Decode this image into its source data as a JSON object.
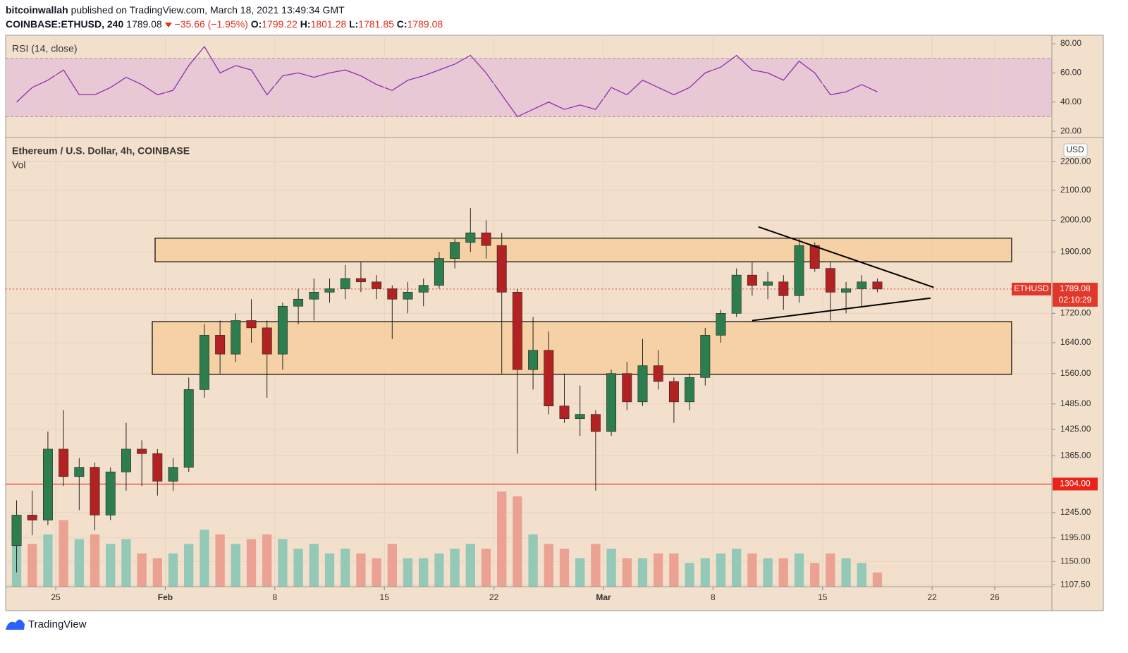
{
  "header": {
    "author": "bitcoinwallah",
    "published": "published on TradingView.com, March 18, 2021 13:49:34 GMT",
    "symbol": "COINBASE:ETHUSD, 240",
    "price": "1789.08",
    "change": "−35.66 (−1.95%)",
    "ohlc": [
      {
        "label": "O:",
        "value": "1799.22"
      },
      {
        "label": "H:",
        "value": "1801.28"
      },
      {
        "label": "L:",
        "value": "1781.85"
      },
      {
        "label": "C:",
        "value": "1789.08"
      }
    ]
  },
  "footer": {
    "brand": "TradingView"
  },
  "chart_data": [
    {
      "type": "candlestick",
      "title": "Ethereum / U.S. Dollar, 4h, COINBASE",
      "subtitle": "Vol",
      "unit": "USD",
      "log_scale": true,
      "up_color": "#2e7d4f",
      "down_color": "#b22222",
      "volume_up_color": "#93c9b6",
      "volume_down_color": "#eba293",
      "background": "#f3e0cc",
      "x": [
        22.5,
        23.5,
        24.5,
        25.5,
        26.5,
        27.5,
        28.5,
        29.5,
        30.5,
        31.5,
        32.5,
        33.5,
        34.5,
        35.5,
        36.5,
        37.5,
        38.5,
        39.5,
        40.5,
        41.5,
        42.5,
        43.5,
        44.5,
        45.5,
        46.5,
        47.5,
        48.5,
        49.5,
        50.5,
        51.5,
        52.5,
        53.5,
        54.5,
        55.5,
        56.5,
        57.5,
        58.5,
        59.5,
        60.5,
        61.5,
        62.5,
        63.5,
        64.5,
        65.5,
        66.5,
        67.5,
        68.5,
        69.5,
        70.5,
        71.5,
        72.5,
        73.5,
        74.5,
        75.5,
        76.5,
        77.5
      ],
      "open": [
        1180,
        1240,
        1230,
        1380,
        1320,
        1340,
        1240,
        1330,
        1380,
        1370,
        1310,
        1340,
        1520,
        1660,
        1610,
        1700,
        1680,
        1610,
        1740,
        1760,
        1780,
        1790,
        1820,
        1810,
        1790,
        1760,
        1780,
        1800,
        1880,
        1930,
        1960,
        1920,
        1780,
        1570,
        1620,
        1480,
        1450,
        1460,
        1420,
        1560,
        1490,
        1580,
        1540,
        1490,
        1550,
        1660,
        1720,
        1830,
        1800,
        1810,
        1770,
        1920,
        1850,
        1780,
        1790,
        1810
      ],
      "high": [
        1270,
        1290,
        1420,
        1470,
        1360,
        1350,
        1340,
        1440,
        1400,
        1380,
        1360,
        1550,
        1690,
        1700,
        1720,
        1760,
        1700,
        1750,
        1790,
        1820,
        1820,
        1860,
        1870,
        1830,
        1800,
        1810,
        1820,
        1900,
        1940,
        2040,
        2000,
        1960,
        1790,
        1710,
        1670,
        1560,
        1530,
        1470,
        1570,
        1590,
        1650,
        1620,
        1550,
        1560,
        1680,
        1730,
        1850,
        1870,
        1840,
        1830,
        1940,
        1930,
        1870,
        1810,
        1830,
        1820
      ],
      "low": [
        1130,
        1200,
        1220,
        1300,
        1250,
        1210,
        1230,
        1290,
        1300,
        1280,
        1290,
        1330,
        1500,
        1560,
        1590,
        1640,
        1500,
        1570,
        1690,
        1700,
        1750,
        1760,
        1780,
        1760,
        1650,
        1720,
        1740,
        1790,
        1850,
        1900,
        1880,
        1560,
        1370,
        1520,
        1460,
        1440,
        1410,
        1290,
        1410,
        1470,
        1480,
        1520,
        1440,
        1470,
        1530,
        1640,
        1710,
        1770,
        1760,
        1730,
        1750,
        1840,
        1700,
        1720,
        1740,
        1780
      ],
      "close": [
        1240,
        1230,
        1380,
        1320,
        1340,
        1240,
        1330,
        1380,
        1370,
        1310,
        1340,
        1520,
        1660,
        1610,
        1700,
        1680,
        1610,
        1740,
        1760,
        1780,
        1790,
        1820,
        1810,
        1790,
        1760,
        1780,
        1800,
        1880,
        1930,
        1960,
        1920,
        1780,
        1570,
        1620,
        1480,
        1450,
        1460,
        1420,
        1560,
        1490,
        1580,
        1540,
        1490,
        1550,
        1660,
        1720,
        1830,
        1800,
        1810,
        1770,
        1920,
        1850,
        1780,
        1790,
        1810,
        1789.08
      ],
      "volume": [
        60,
        45,
        55,
        70,
        50,
        55,
        45,
        50,
        35,
        30,
        35,
        45,
        60,
        55,
        45,
        50,
        55,
        50,
        40,
        45,
        35,
        40,
        35,
        30,
        45,
        30,
        30,
        35,
        40,
        45,
        40,
        100,
        95,
        55,
        45,
        40,
        30,
        45,
        40,
        30,
        30,
        35,
        35,
        25,
        30,
        35,
        40,
        35,
        30,
        30,
        35,
        25,
        35,
        30,
        25,
        15
      ],
      "xlim": [
        21.8,
        88.65
      ],
      "ylim": [
        1104,
        2285
      ],
      "xticks": [
        {
          "value": 25,
          "label": "25"
        },
        {
          "value": 32,
          "label": "Feb"
        },
        {
          "value": 39,
          "label": "8"
        },
        {
          "value": 46,
          "label": "15"
        },
        {
          "value": 53,
          "label": "22"
        },
        {
          "value": 60,
          "label": "Mar"
        },
        {
          "value": 67,
          "label": "8"
        },
        {
          "value": 74,
          "label": "15"
        },
        {
          "value": 81,
          "label": "22"
        },
        {
          "value": 85,
          "label": "26"
        }
      ],
      "yticks": [
        {
          "value": 1107.5,
          "label": "1107.50"
        },
        {
          "value": 1150,
          "label": "1150.00"
        },
        {
          "value": 1195,
          "label": "1195.00"
        },
        {
          "value": 1245,
          "label": "1245.00"
        },
        {
          "value": 1365,
          "label": "1365.00"
        },
        {
          "value": 1425,
          "label": "1425.00"
        },
        {
          "value": 1485,
          "label": "1485.00"
        },
        {
          "value": 1560,
          "label": "1560.00"
        },
        {
          "value": 1640,
          "label": "1640.00"
        },
        {
          "value": 1720,
          "label": "1720.00"
        },
        {
          "value": 1900,
          "label": "1900.00"
        },
        {
          "value": 2000,
          "label": "2000.00"
        },
        {
          "value": 2100,
          "label": "2100.00"
        },
        {
          "value": 2200,
          "label": "2200.00"
        }
      ],
      "grid": true,
      "hline": {
        "value": 1304,
        "label": "1304.00",
        "color": "#e8231a"
      },
      "last_price": {
        "value": 1789.08,
        "label": "1789.08",
        "symbol": "ETHUSD",
        "countdown": "02:10:29",
        "color": "#e0392b"
      },
      "zones": [
        {
          "x": [
            31.35,
            86.08
          ],
          "y": [
            1870,
            1943
          ]
        },
        {
          "x": [
            31.17,
            86.08
          ],
          "y": [
            1558,
            1697
          ]
        }
      ],
      "zone_color": "#f6cc98",
      "trendlines": [
        {
          "x": [
            69.9,
            81.1
          ],
          "y": [
            1979,
            1794
          ]
        },
        {
          "x": [
            69.5,
            80.9
          ],
          "y": [
            1700,
            1763
          ]
        }
      ]
    },
    {
      "type": "line",
      "title": "RSI (14, close)",
      "color": "#8e2fb0",
      "band_color": "#e8c8d4",
      "x": [
        22.5,
        23.5,
        24.5,
        25.5,
        26.5,
        27.5,
        28.5,
        29.5,
        30.5,
        31.5,
        32.5,
        33.5,
        34.5,
        35.5,
        36.5,
        37.5,
        38.5,
        39.5,
        40.5,
        41.5,
        42.5,
        43.5,
        44.5,
        45.5,
        46.5,
        47.5,
        48.5,
        49.5,
        50.5,
        51.5,
        52.5,
        53.5,
        54.5,
        55.5,
        56.5,
        57.5,
        58.5,
        59.5,
        60.5,
        61.5,
        62.5,
        63.5,
        64.5,
        65.5,
        66.5,
        67.5,
        68.5,
        69.5,
        70.5,
        71.5,
        72.5,
        73.5,
        74.5,
        75.5,
        76.5,
        77.5
      ],
      "values": [
        40,
        50,
        55,
        62,
        45,
        45,
        50,
        57,
        52,
        45,
        48,
        65,
        78,
        60,
        65,
        62,
        45,
        58,
        60,
        57,
        60,
        62,
        58,
        52,
        48,
        55,
        58,
        62,
        66,
        72,
        60,
        45,
        30,
        35,
        40,
        35,
        38,
        35,
        50,
        45,
        55,
        50,
        45,
        50,
        60,
        64,
        72,
        62,
        60,
        55,
        68,
        60,
        45,
        47,
        52,
        47
      ],
      "xlim": [
        21.8,
        88.65
      ],
      "ylim": [
        15.7,
        85.8
      ],
      "levels": [
        30,
        70
      ],
      "yticks": [
        {
          "value": 20,
          "label": "20.00"
        },
        {
          "value": 40,
          "label": "40.00"
        },
        {
          "value": 60,
          "label": "60.00"
        },
        {
          "value": 80,
          "label": "80.00"
        }
      ]
    }
  ]
}
